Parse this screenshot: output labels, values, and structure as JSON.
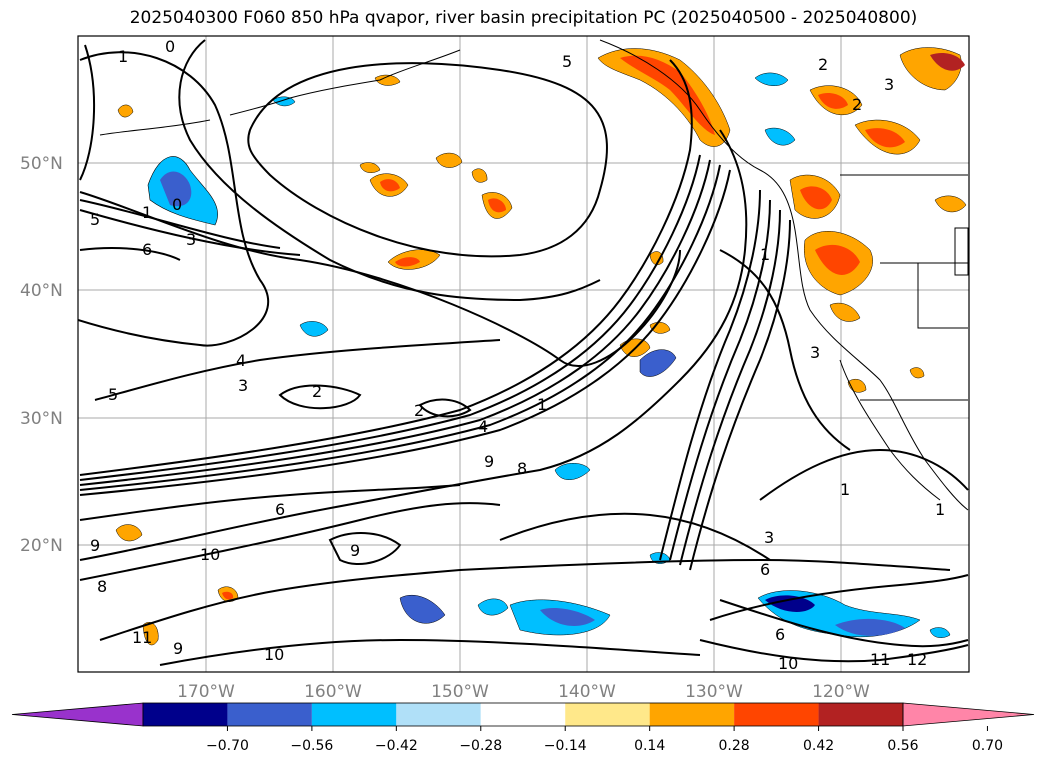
{
  "title": "2025040300 F060 850 hPa qvapor, river basin precipitation PC (2025040500 - 2025040800)",
  "lat_labels": [
    "50°N",
    "40°N",
    "30°N",
    "20°N"
  ],
  "lon_labels": [
    "170°W",
    "160°W",
    "150°W",
    "140°W",
    "130°W",
    "120°W"
  ],
  "colorbar": {
    "ticks": [
      "−0.70",
      "−0.56",
      "−0.42",
      "−0.28",
      "−0.14",
      "0.14",
      "0.28",
      "0.42",
      "0.56",
      "0.70"
    ],
    "colors": [
      "#9932cc",
      "#00008b",
      "#3a5fcd",
      "#00bfff",
      "#b0e0f8",
      "#ffffff",
      "#ffe88a",
      "#ffa500",
      "#ff4500",
      "#b22222",
      "#ff85a8"
    ]
  },
  "contour_labels": [
    "0",
    "1",
    "5",
    "5",
    "1",
    "0",
    "3",
    "6",
    "4",
    "3",
    "5",
    "2",
    "2",
    "4",
    "9",
    "8",
    "1",
    "1",
    "9",
    "10",
    "6",
    "9",
    "8",
    "3",
    "6",
    "6",
    "11",
    "9",
    "10",
    "10",
    "11",
    "12",
    "1",
    "1",
    "2",
    "3",
    "2",
    "3"
  ]
}
